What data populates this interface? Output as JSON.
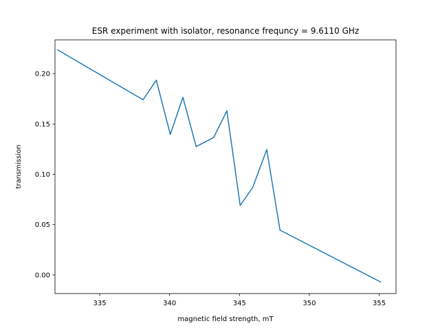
{
  "chart_data": {
    "type": "line",
    "title": "ESR experiment with isolator, resonance frequncy = 9.6110 GHz",
    "xlabel": "magnetic field strength, mT",
    "ylabel": "transmission",
    "xlim": [
      331.8,
      356.2
    ],
    "ylim": [
      -0.0185,
      0.2335
    ],
    "x_ticks": [
      335,
      340,
      345,
      350,
      355
    ],
    "y_ticks": [
      0.0,
      0.05,
      0.1,
      0.15,
      0.2
    ],
    "x_tick_labels": [
      "335",
      "340",
      "345",
      "350",
      "355"
    ],
    "y_tick_labels": [
      "0.00",
      "0.05",
      "0.10",
      "0.15",
      "0.20"
    ],
    "grid": false,
    "series": [
      {
        "color": "#1f77b4",
        "x": [
          332.0,
          338.1,
          339.05,
          340.05,
          340.95,
          341.9,
          343.15,
          344.1,
          345.05,
          345.95,
          346.95,
          347.9,
          355.1
        ],
        "y": [
          0.2235,
          0.174,
          0.1935,
          0.1395,
          0.1765,
          0.1275,
          0.1365,
          0.163,
          0.069,
          0.087,
          0.1245,
          0.0445,
          -0.007
        ]
      }
    ]
  }
}
